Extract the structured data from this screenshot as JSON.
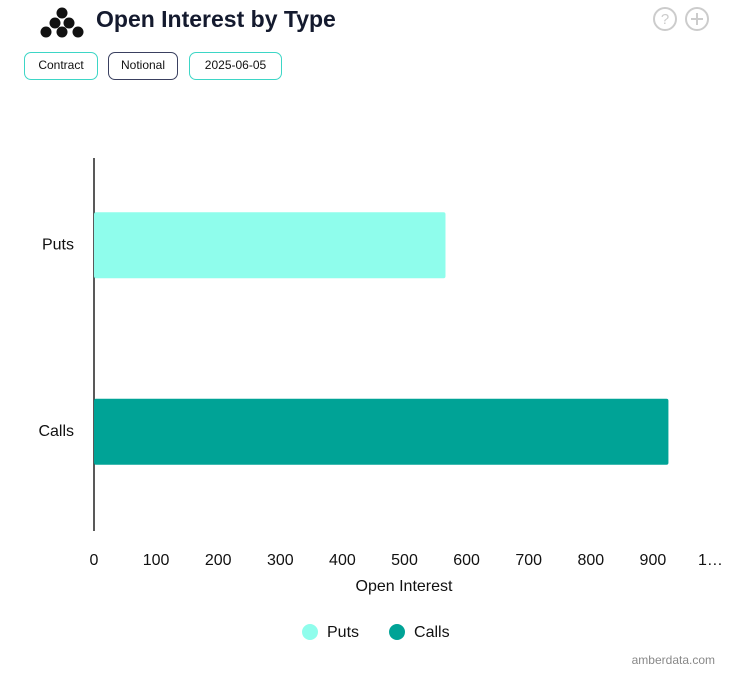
{
  "header": {
    "title": "Open Interest by Type",
    "buttons": [
      "Contract",
      "Notional",
      "2025-06-05"
    ]
  },
  "chart_data": {
    "type": "hbar",
    "categories": [
      "Puts",
      "Calls"
    ],
    "series": [
      {
        "name": "Puts",
        "color": "#8ffdec",
        "values": [
          566,
          null
        ]
      },
      {
        "name": "Calls",
        "color": "#00a396",
        "values": [
          null,
          925
        ]
      }
    ],
    "xlim": [
      0,
      1000
    ],
    "xticks": [
      0,
      100,
      200,
      300,
      400,
      500,
      600,
      700,
      800,
      900,
      {
        "value": 1000,
        "label": "1…"
      }
    ],
    "x_label": "Open Interest"
  },
  "footer": "amberdata.com"
}
